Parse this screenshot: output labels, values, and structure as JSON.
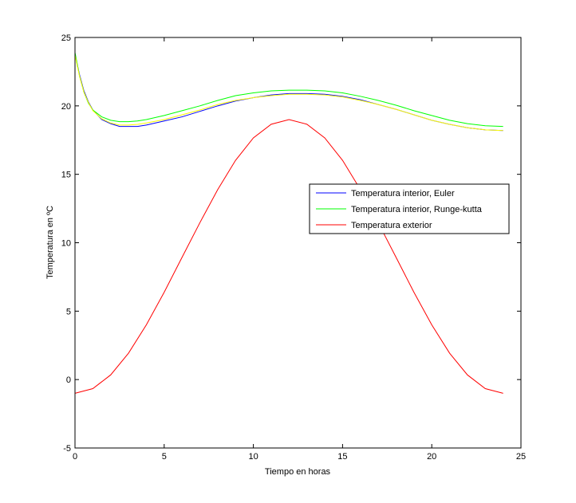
{
  "chart_data": {
    "type": "line",
    "title": "",
    "xlabel": "Tiempo en horas",
    "ylabel": "Temperatura en ºC",
    "xlim": [
      0,
      25
    ],
    "ylim": [
      -5,
      25
    ],
    "xticks": [
      0,
      5,
      10,
      15,
      20,
      25
    ],
    "yticks": [
      -5,
      0,
      5,
      10,
      15,
      20,
      25
    ],
    "grid": false,
    "legend_position": "right-middle",
    "series": [
      {
        "name": "Temperatura interior, Euler",
        "color": "#0000ff",
        "x": [
          0,
          0.25,
          0.5,
          0.75,
          1,
          1.5,
          2,
          2.5,
          3,
          3.5,
          4,
          5,
          6,
          7,
          8,
          9,
          10,
          11,
          12,
          13,
          14,
          15,
          16,
          17,
          18,
          19,
          20,
          21,
          22,
          23,
          24
        ],
        "y": [
          23.8,
          22.3,
          21.1,
          20.3,
          19.7,
          19.0,
          18.7,
          18.5,
          18.5,
          18.5,
          18.6,
          18.9,
          19.2,
          19.6,
          20.0,
          20.35,
          20.6,
          20.8,
          20.9,
          20.9,
          20.85,
          20.7,
          20.45,
          20.1,
          19.75,
          19.35,
          18.95,
          18.65,
          18.4,
          18.25,
          18.2
        ]
      },
      {
        "name": "Temperatura interior, Runge-kutta",
        "color": "#00ff00",
        "x": [
          0,
          0.25,
          0.5,
          0.75,
          1,
          1.5,
          2,
          2.5,
          3,
          3.5,
          4,
          5,
          6,
          7,
          8,
          9,
          10,
          11,
          12,
          13,
          14,
          15,
          16,
          17,
          18,
          19,
          20,
          21,
          22,
          23,
          24
        ],
        "y": [
          23.9,
          22.2,
          21.0,
          20.2,
          19.7,
          19.2,
          18.95,
          18.85,
          18.85,
          18.9,
          19.0,
          19.3,
          19.65,
          20.0,
          20.4,
          20.75,
          20.95,
          21.1,
          21.15,
          21.15,
          21.1,
          20.95,
          20.7,
          20.4,
          20.05,
          19.65,
          19.3,
          18.95,
          18.7,
          18.55,
          18.5
        ]
      },
      {
        "name": "",
        "color": "#ffff00",
        "x": [
          0,
          0.25,
          0.5,
          0.75,
          1,
          1.5,
          2,
          2.5,
          3,
          3.5,
          4,
          5,
          6,
          7,
          8,
          9,
          10,
          11,
          12,
          13,
          14,
          15,
          16,
          17,
          18,
          19,
          20,
          21,
          22,
          23,
          24
        ],
        "y": [
          23.7,
          22.2,
          21.0,
          20.25,
          19.65,
          19.05,
          18.75,
          18.6,
          18.6,
          18.65,
          18.75,
          19.0,
          19.35,
          19.7,
          20.1,
          20.4,
          20.6,
          20.75,
          20.85,
          20.85,
          20.8,
          20.65,
          20.4,
          20.1,
          19.75,
          19.35,
          18.95,
          18.65,
          18.4,
          18.25,
          18.2
        ]
      },
      {
        "name": "Temperatura exterior",
        "color": "#ff0000",
        "x": [
          0,
          1,
          2,
          3,
          4,
          5,
          6,
          7,
          8,
          9,
          10,
          11,
          12,
          13,
          14,
          15,
          16,
          17,
          18,
          19,
          20,
          21,
          22,
          23,
          24
        ],
        "y": [
          -1.0,
          -0.66,
          0.34,
          1.93,
          4.0,
          6.38,
          8.93,
          11.46,
          13.88,
          16.02,
          17.66,
          18.66,
          19.0,
          18.66,
          17.66,
          16.02,
          13.88,
          11.46,
          8.93,
          6.38,
          4.0,
          1.93,
          0.34,
          -0.66,
          -1.0
        ]
      }
    ]
  }
}
